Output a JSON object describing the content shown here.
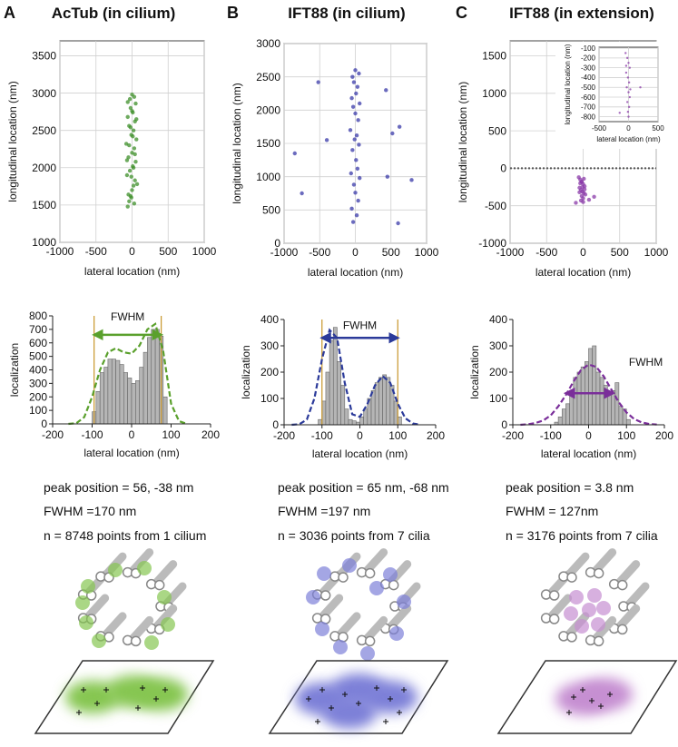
{
  "panels": [
    {
      "letter": "A",
      "title": "AcTub (in cilium)",
      "stats": [
        "peak position = 56, -38 nm",
        "FWHM =170 nm",
        "n = 8748 points from 1 cilium"
      ]
    },
    {
      "letter": "B",
      "title": "IFT88 (in cilium)",
      "stats": [
        "peak position = 65 nm, -68 nm",
        "FWHM =197 nm",
        "n = 3036 points from 7 cilia"
      ]
    },
    {
      "letter": "C",
      "title": "IFT88 (in extension)",
      "stats": [
        "peak position = 3.8 nm",
        "FWHM = 127nm",
        "n = 3176 points from 7 cilia"
      ]
    }
  ],
  "chart_data": [
    {
      "type": "scatter",
      "xlabel": "lateral location (nm)",
      "ylabel": "longitudinal location (nm)",
      "xlim": [
        -1000,
        1000
      ],
      "ylim": [
        1000,
        3700
      ],
      "xticks": [
        -1000,
        -500,
        0,
        500,
        1000
      ],
      "yticks": [
        1000,
        1500,
        2000,
        2500,
        3000,
        3500
      ],
      "grid": true,
      "color": "#3d8f2a",
      "x": [
        -60,
        -40,
        -20,
        0,
        20,
        40,
        -70,
        -30,
        10,
        50,
        -50,
        0,
        30,
        -80,
        60,
        -10,
        20,
        -40,
        40,
        -60,
        10,
        -20,
        50,
        -30,
        0,
        30,
        -50,
        70,
        -10,
        20,
        -70,
        40,
        -40,
        10,
        -20,
        60,
        0,
        -60,
        30,
        -10
      ],
      "y": [
        1480,
        1550,
        1620,
        1700,
        1760,
        1830,
        1900,
        1960,
        2020,
        2080,
        2140,
        2200,
        2260,
        2320,
        2380,
        2440,
        2500,
        2560,
        2620,
        2680,
        2740,
        2800,
        2860,
        2920,
        2980,
        1520,
        1640,
        1780,
        1880,
        2000,
        2100,
        2180,
        2300,
        2420,
        2540,
        2650,
        2760,
        2880,
        2950,
        1600
      ]
    },
    {
      "type": "histogram",
      "xlabel": "lateral location (nm)",
      "ylabel": "localization",
      "xlim": [
        -200,
        200
      ],
      "ylim": [
        0,
        800
      ],
      "xticks": [
        -200,
        -100,
        0,
        100,
        200
      ],
      "yticks": [
        0,
        100,
        200,
        300,
        400,
        500,
        600,
        700,
        800
      ],
      "color": "#b5b5b5",
      "bins": [
        -100,
        -90,
        -80,
        -70,
        -60,
        -50,
        -40,
        -30,
        -20,
        -10,
        0,
        10,
        20,
        30,
        40,
        50,
        60,
        70,
        80,
        90
      ],
      "counts": [
        90,
        240,
        380,
        420,
        480,
        480,
        470,
        440,
        380,
        340,
        300,
        320,
        420,
        530,
        640,
        700,
        700,
        650,
        200
      ],
      "fit": {
        "color": "#5aa02c",
        "x": [
          -160,
          -140,
          -120,
          -100,
          -80,
          -60,
          -40,
          -20,
          0,
          20,
          40,
          60,
          80,
          100,
          120,
          140
        ],
        "values": [
          0,
          5,
          50,
          200,
          400,
          530,
          560,
          530,
          520,
          580,
          700,
          740,
          540,
          150,
          20,
          0
        ]
      },
      "annotation": "FWHM",
      "fwhm_lines": [
        -95,
        75
      ],
      "fwhm_arrow": {
        "from": -95,
        "to": 75,
        "y": 660
      }
    },
    {
      "type": "scatter",
      "xlabel": "lateral location (nm)",
      "ylabel": "longitudinal location (nm)",
      "xlim": [
        -1000,
        1000
      ],
      "ylim": [
        0,
        3000
      ],
      "xticks": [
        -1000,
        -500,
        0,
        500,
        1000
      ],
      "yticks": [
        0,
        500,
        1000,
        1500,
        2000,
        2500,
        3000
      ],
      "grid": true,
      "color": "#3a3aa8",
      "x": [
        -30,
        20,
        -50,
        40,
        0,
        -20,
        60,
        -60,
        30,
        10,
        -40,
        50,
        -10,
        20,
        -70,
        40,
        0,
        -30,
        60,
        -50,
        10,
        30,
        -20,
        -40,
        50,
        0,
        -850,
        -520,
        -400,
        -750,
        430,
        520,
        620,
        600,
        790,
        450
      ],
      "y": [
        320,
        420,
        520,
        640,
        760,
        880,
        980,
        1050,
        1120,
        1250,
        1400,
        1480,
        1560,
        1620,
        1700,
        1850,
        1950,
        2050,
        2100,
        2180,
        2250,
        2350,
        2420,
        2500,
        2550,
        2600,
        1350,
        2420,
        1550,
        750,
        2300,
        1650,
        1750,
        300,
        950,
        1000
      ]
    },
    {
      "type": "histogram",
      "xlabel": "lateral location (nm)",
      "ylabel": "localization",
      "xlim": [
        -200,
        200
      ],
      "ylim": [
        0,
        400
      ],
      "xticks": [
        -200,
        -100,
        0,
        100,
        200
      ],
      "yticks": [
        0,
        100,
        200,
        300,
        400
      ],
      "color": "#b5b5b5",
      "bins": [
        -110,
        -100,
        -90,
        -80,
        -70,
        -60,
        -50,
        -40,
        -30,
        -20,
        -10,
        0,
        10,
        20,
        30,
        40,
        50,
        60,
        70,
        80,
        90,
        100,
        110
      ],
      "counts": [
        20,
        90,
        200,
        320,
        370,
        240,
        150,
        60,
        20,
        15,
        10,
        30,
        60,
        100,
        130,
        160,
        180,
        190,
        180,
        150,
        90,
        30
      ],
      "fit": {
        "color": "#2b3a9a",
        "x": [
          -180,
          -160,
          -140,
          -120,
          -100,
          -80,
          -60,
          -40,
          -20,
          0,
          20,
          40,
          60,
          80,
          100,
          120,
          140,
          160
        ],
        "values": [
          0,
          2,
          20,
          100,
          250,
          360,
          330,
          160,
          40,
          30,
          80,
          150,
          185,
          160,
          80,
          25,
          5,
          0
        ]
      },
      "annotation": "FWHM",
      "fwhm_lines": [
        -100,
        100
      ],
      "fwhm_arrow": {
        "from": -100,
        "to": 100,
        "y": 330
      }
    },
    {
      "type": "scatter",
      "xlabel": "lateral location (nm)",
      "ylabel": "longitudinal location (nm)",
      "xlim": [
        -1000,
        1000
      ],
      "ylim": [
        -1000,
        1700
      ],
      "xticks": [
        -1000,
        -500,
        0,
        500,
        1000
      ],
      "yticks": [
        -1000,
        -500,
        0,
        500,
        1000,
        1500
      ],
      "grid": true,
      "color": "#8a3aa8",
      "hline": 0,
      "x": [
        -60,
        -40,
        -20,
        0,
        20,
        -50,
        -30,
        -10,
        10,
        30,
        -40,
        -20,
        0,
        -30,
        -10,
        10,
        -50,
        20,
        -20,
        0,
        150,
        80,
        -100
      ],
      "y": [
        -120,
        -150,
        -180,
        -210,
        -240,
        -260,
        -290,
        -310,
        -330,
        -350,
        -200,
        -370,
        -400,
        -430,
        -250,
        -140,
        -320,
        -280,
        -180,
        -450,
        -380,
        -420,
        -460
      ]
    },
    {
      "type": "scatter",
      "xlabel": "lateral location (nm)",
      "ylabel": "longitudinal location (nm)",
      "xlim": [
        -500,
        500
      ],
      "ylim": [
        -850,
        -90
      ],
      "xticks": [
        -500,
        0,
        500
      ],
      "yticks": [
        -100,
        -200,
        -300,
        -400,
        -500,
        -600,
        -700,
        -800
      ],
      "grid": true,
      "color": "#8a3aa8",
      "x": [
        -50,
        -20,
        0,
        20,
        -40,
        -10,
        10,
        -30,
        0,
        20,
        -20,
        10,
        -10,
        0,
        -40,
        30,
        200,
        -150
      ],
      "y": [
        -150,
        -200,
        -250,
        -300,
        -350,
        -400,
        -450,
        -500,
        -550,
        -600,
        -650,
        -700,
        -750,
        -800,
        -280,
        -520,
        -500,
        -760
      ]
    },
    {
      "type": "histogram",
      "xlabel": "lateral location (nm)",
      "ylabel": "localization",
      "xlim": [
        -200,
        200
      ],
      "ylim": [
        0,
        400
      ],
      "xticks": [
        -200,
        -100,
        0,
        100,
        200
      ],
      "yticks": [
        0,
        100,
        200,
        300,
        400
      ],
      "color": "#b5b5b5",
      "bins": [
        -90,
        -80,
        -70,
        -60,
        -50,
        -40,
        -30,
        -20,
        -10,
        0,
        10,
        20,
        30,
        40,
        50,
        60,
        70,
        80,
        90,
        100,
        110
      ],
      "counts": [
        10,
        30,
        60,
        80,
        110,
        180,
        200,
        220,
        240,
        290,
        300,
        200,
        180,
        150,
        120,
        130,
        160,
        70,
        60,
        20
      ],
      "fit": {
        "color": "#7a2e9a",
        "x": [
          -180,
          -160,
          -140,
          -120,
          -100,
          -80,
          -60,
          -40,
          -20,
          0,
          20,
          40,
          60,
          80,
          100,
          120,
          140,
          160,
          180
        ],
        "values": [
          0,
          2,
          7,
          16,
          36,
          70,
          113,
          164,
          208,
          229,
          220,
          184,
          134,
          85,
          47,
          22,
          9,
          3,
          1
        ]
      },
      "annotation": "FWHM",
      "fwhm_arrow": {
        "from": -60,
        "to": 65,
        "y": 120
      }
    }
  ]
}
